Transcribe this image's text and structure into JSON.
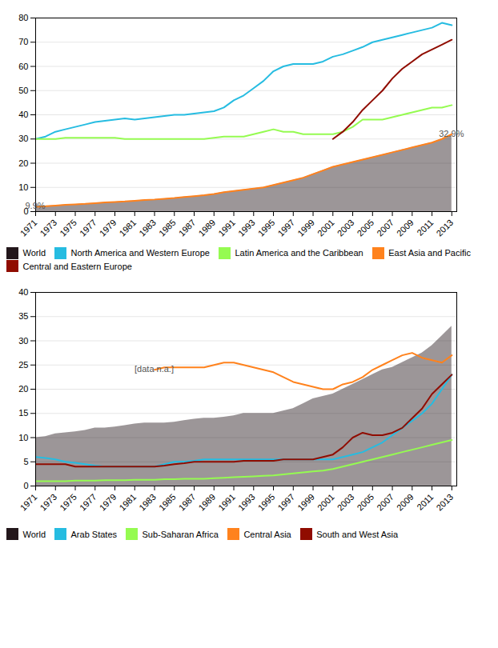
{
  "chart_data": [
    {
      "type": "line",
      "annotations": [
        "9.9%",
        "32.9%"
      ],
      "x": [
        1971,
        1972,
        1973,
        1974,
        1975,
        1976,
        1977,
        1978,
        1979,
        1980,
        1981,
        1982,
        1983,
        1984,
        1985,
        1986,
        1987,
        1988,
        1989,
        1990,
        1991,
        1992,
        1993,
        1994,
        1995,
        1996,
        1997,
        1998,
        1999,
        2000,
        2001,
        2002,
        2003,
        2004,
        2005,
        2006,
        2007,
        2008,
        2009,
        2010,
        2011,
        2012,
        2013
      ],
      "series": [
        {
          "name": "World",
          "type": "area",
          "values": [
            2,
            2.2,
            2.5,
            2.8,
            3,
            3.2,
            3.5,
            3.8,
            4,
            4.2,
            4.5,
            4.8,
            5,
            5.3,
            5.6,
            6,
            6.4,
            6.8,
            7.3,
            8,
            8.5,
            9,
            9.5,
            10,
            11,
            12,
            13,
            14,
            15.5,
            17,
            18.5,
            19.5,
            20.5,
            21.5,
            22.5,
            23.5,
            24.5,
            25.5,
            26.5,
            27.5,
            28.5,
            30,
            32
          ]
        },
        {
          "name": "North America and Western Europe",
          "values": [
            30,
            31,
            33,
            34,
            35,
            36,
            37,
            37.5,
            38,
            38.5,
            38,
            38.5,
            39,
            39.5,
            40,
            40,
            40.5,
            41,
            41.5,
            43,
            46,
            48,
            51,
            54,
            58,
            60,
            61,
            61,
            61,
            62,
            64,
            65,
            66.5,
            68,
            70,
            71,
            72,
            73,
            74,
            75,
            76,
            78,
            77
          ]
        },
        {
          "name": "Latin America and the Caribbean",
          "values": [
            30,
            30,
            30,
            30.5,
            30.5,
            30.5,
            30.5,
            30.5,
            30.5,
            30,
            30,
            30,
            30,
            30,
            30,
            30,
            30,
            30,
            30.5,
            31,
            31,
            31,
            32,
            33,
            34,
            33,
            33,
            32,
            32,
            32,
            32,
            33,
            35,
            38,
            38,
            38,
            39,
            40,
            41,
            42,
            43,
            43,
            44
          ]
        },
        {
          "name": "East Asia and Pacific",
          "values": [
            2,
            2.2,
            2.5,
            2.8,
            3,
            3.2,
            3.5,
            3.8,
            4,
            4.2,
            4.5,
            4.8,
            5,
            5.3,
            5.6,
            6,
            6.4,
            6.8,
            7.3,
            8,
            8.5,
            9,
            9.5,
            10,
            11,
            12,
            13,
            14,
            15.5,
            17,
            18.5,
            19.5,
            20.5,
            21.5,
            22.5,
            23.5,
            24.5,
            25.5,
            26.5,
            27.5,
            28.5,
            30,
            32
          ]
        },
        {
          "name": "Central and Eastern Europe",
          "values": [
            null,
            null,
            null,
            null,
            null,
            null,
            null,
            null,
            null,
            null,
            null,
            null,
            null,
            null,
            null,
            null,
            null,
            null,
            null,
            null,
            null,
            null,
            null,
            null,
            null,
            null,
            null,
            null,
            null,
            null,
            30,
            33,
            37,
            42,
            46,
            50,
            55,
            59,
            62,
            65,
            67,
            69,
            71
          ]
        }
      ],
      "xlim": [
        1971,
        2013.5
      ],
      "xticks": [
        1971,
        1973,
        1975,
        1977,
        1979,
        1981,
        1983,
        1985,
        1987,
        1989,
        1991,
        1993,
        1995,
        1997,
        1999,
        2001,
        2003,
        2005,
        2007,
        2009,
        2011,
        2013
      ],
      "ylim": [
        0,
        80
      ],
      "yticks": [
        0,
        10,
        20,
        30,
        40,
        50,
        60,
        70,
        80
      ],
      "grid": true,
      "legend": "bottom"
    },
    {
      "type": "line",
      "annotations": [
        "[data n.a.]"
      ],
      "x": [
        1971,
        1972,
        1973,
        1974,
        1975,
        1976,
        1977,
        1978,
        1979,
        1980,
        1981,
        1982,
        1983,
        1984,
        1985,
        1986,
        1987,
        1988,
        1989,
        1990,
        1991,
        1992,
        1993,
        1994,
        1995,
        1996,
        1997,
        1998,
        1999,
        2000,
        2001,
        2002,
        2003,
        2004,
        2005,
        2006,
        2007,
        2008,
        2009,
        2010,
        2011,
        2012,
        2013
      ],
      "series": [
        {
          "name": "World",
          "type": "area",
          "values": [
            10,
            10.2,
            10.8,
            11,
            11.2,
            11.5,
            12,
            12,
            12.2,
            12.5,
            12.8,
            13,
            13,
            13,
            13.2,
            13.5,
            13.8,
            14,
            14,
            14.2,
            14.5,
            15,
            15,
            15,
            15,
            15.5,
            16,
            17,
            18,
            18.5,
            19,
            20,
            21,
            22,
            23,
            24,
            24.5,
            25.5,
            26.5,
            27.5,
            29,
            31,
            33
          ]
        },
        {
          "name": "Arab States",
          "values": [
            6,
            5.8,
            5.5,
            5,
            4.8,
            4.5,
            4.2,
            4,
            4,
            4,
            4,
            4,
            4,
            4.5,
            5,
            5,
            5.2,
            5.5,
            5.5,
            5.5,
            5.5,
            5.5,
            5.5,
            5.5,
            5.5,
            5.5,
            5.5,
            5.5,
            5.5,
            5.5,
            5.5,
            6,
            6.5,
            7,
            8,
            9,
            10.5,
            12,
            13.5,
            15,
            17,
            20,
            23
          ]
        },
        {
          "name": "Sub-Saharan Africa",
          "values": [
            1,
            1,
            1,
            1,
            1.1,
            1.1,
            1.1,
            1.2,
            1.2,
            1.2,
            1.3,
            1.3,
            1.3,
            1.4,
            1.4,
            1.5,
            1.5,
            1.5,
            1.6,
            1.7,
            1.8,
            1.9,
            2,
            2.1,
            2.2,
            2.4,
            2.6,
            2.8,
            3,
            3.2,
            3.5,
            4,
            4.5,
            5,
            5.5,
            6,
            6.5,
            7,
            7.5,
            8,
            8.5,
            9,
            9.5
          ]
        },
        {
          "name": "Central Asia",
          "values": [
            null,
            null,
            null,
            null,
            null,
            null,
            null,
            null,
            null,
            null,
            null,
            null,
            24,
            24.5,
            24.5,
            24.5,
            24.5,
            24.5,
            25,
            25.5,
            25.5,
            25,
            24.5,
            24,
            23.5,
            22.5,
            21.5,
            21,
            20.5,
            20,
            20,
            21,
            21.5,
            22.5,
            24,
            25,
            26,
            27,
            27.5,
            26.5,
            26,
            25.5,
            27
          ]
        },
        {
          "name": "South and West Asia",
          "values": [
            4.5,
            4.5,
            4.5,
            4.5,
            4,
            4,
            4,
            4,
            4,
            4,
            4,
            4,
            4,
            4.2,
            4.5,
            4.7,
            5,
            5,
            5,
            5,
            5,
            5.2,
            5.2,
            5.2,
            5.2,
            5.5,
            5.5,
            5.5,
            5.5,
            6,
            6.5,
            8,
            10,
            11,
            10.5,
            10.5,
            11,
            12,
            14,
            16,
            19,
            21,
            23
          ]
        }
      ],
      "xlim": [
        1971,
        2013.5
      ],
      "xticks": [
        1971,
        1973,
        1975,
        1977,
        1979,
        1981,
        1983,
        1985,
        1987,
        1989,
        1991,
        1993,
        1995,
        1997,
        1999,
        2001,
        2003,
        2005,
        2007,
        2009,
        2011,
        2013
      ],
      "ylim": [
        0,
        40
      ],
      "yticks": [
        0,
        5,
        10,
        15,
        20,
        25,
        30,
        35,
        40
      ],
      "grid": true,
      "legend": "bottom"
    }
  ]
}
